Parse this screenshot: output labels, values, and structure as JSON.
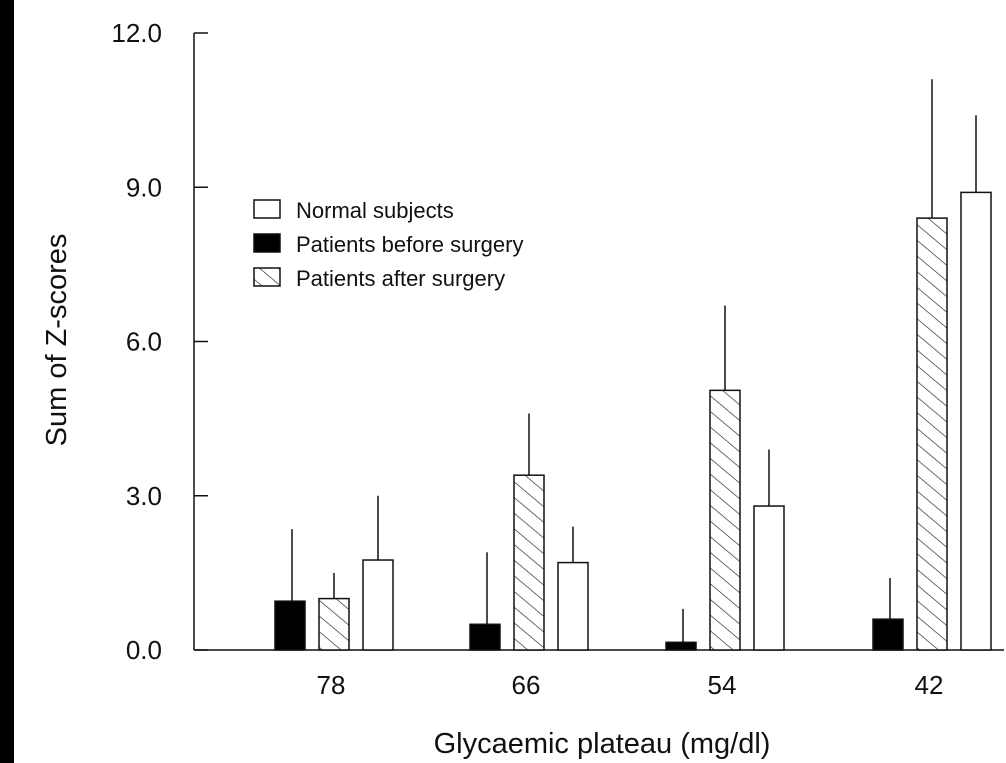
{
  "chart_data": {
    "type": "bar",
    "title": "",
    "xlabel": "Glycaemic plateau (mg/dl)",
    "ylabel": "Sum of Z-scores",
    "ylim": [
      0,
      12
    ],
    "yticks": [
      "0.0",
      "3.0",
      "6.0",
      "9.0",
      "12.0"
    ],
    "categories": [
      "78",
      "66",
      "54",
      "42"
    ],
    "series": [
      {
        "name": "Patients before surgery",
        "fill": "solid",
        "color": "#000000",
        "values": [
          0.95,
          0.5,
          0.15,
          0.6
        ],
        "errors": [
          1.4,
          1.4,
          0.65,
          0.8
        ]
      },
      {
        "name": "Patients after surgery",
        "fill": "hatched",
        "color": "#ffffff",
        "values": [
          1.0,
          3.4,
          5.05,
          8.4
        ],
        "errors": [
          0.5,
          1.2,
          1.65,
          2.7
        ]
      },
      {
        "name": "Normal subjects",
        "fill": "open",
        "color": "#ffffff",
        "values": [
          1.75,
          1.7,
          2.8,
          8.9
        ],
        "errors": [
          1.25,
          0.7,
          1.1,
          1.5
        ]
      }
    ],
    "legend": {
      "position": "upper-left",
      "order": [
        "Normal subjects",
        "Patients before surgery",
        "Patients after surgery"
      ]
    },
    "grid": false
  }
}
